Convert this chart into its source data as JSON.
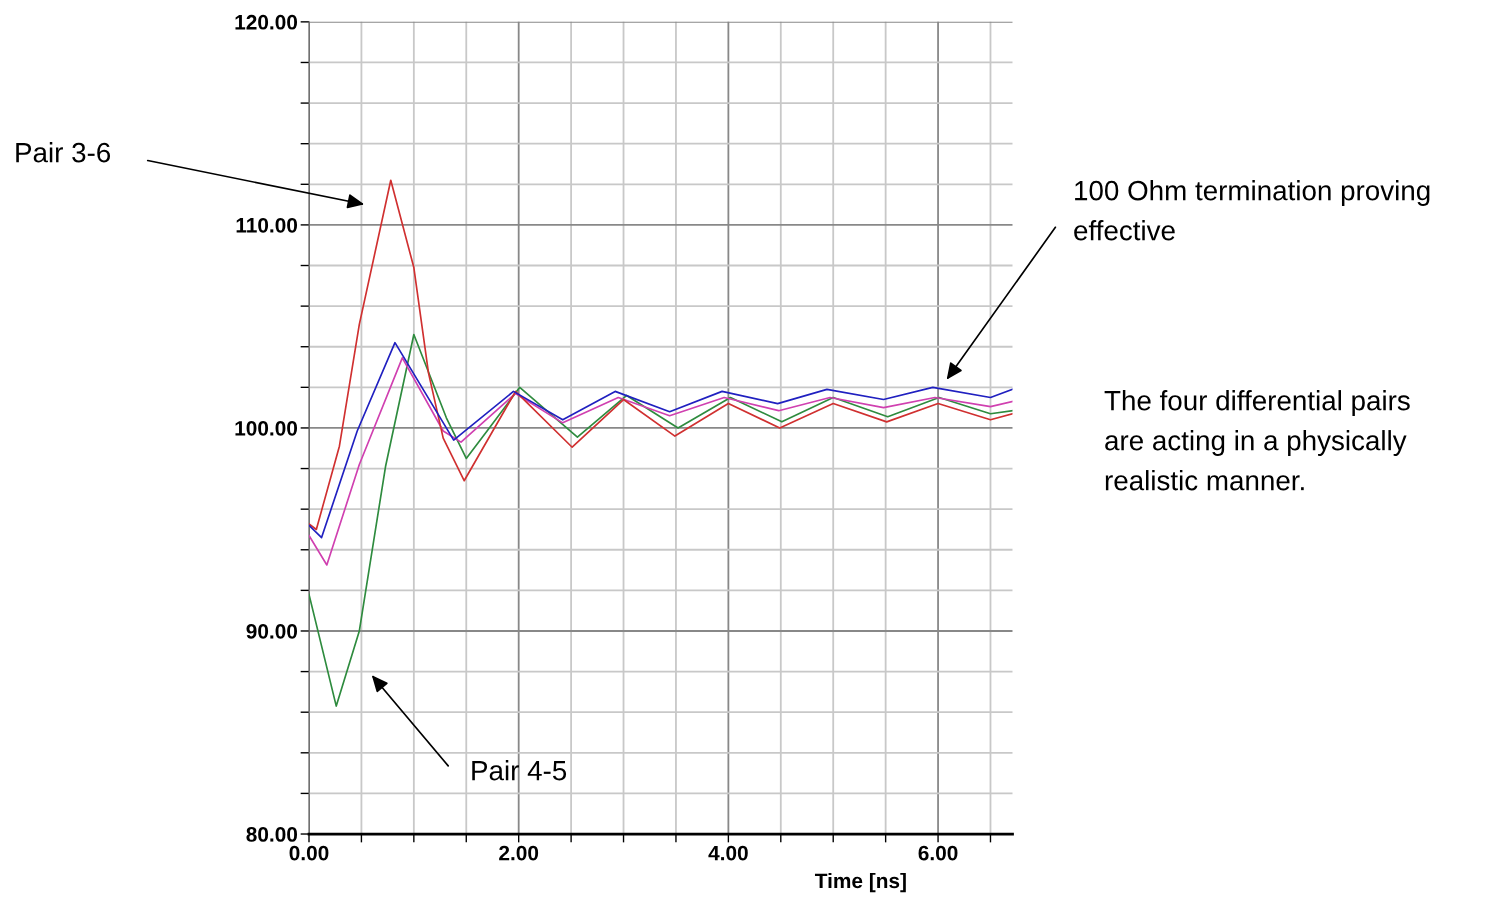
{
  "chart_data": {
    "type": "line",
    "xlabel": "Time [ns]",
    "xlim": [
      0,
      6.71
    ],
    "ylim": [
      80,
      120
    ],
    "xticks": [
      {
        "value": 0,
        "label": "0.00"
      },
      {
        "value": 0.5,
        "label": null
      },
      {
        "value": 1,
        "label": null
      },
      {
        "value": 1.5,
        "label": null
      },
      {
        "value": 2,
        "label": "2.00"
      },
      {
        "value": 2.5,
        "label": null
      },
      {
        "value": 3,
        "label": null
      },
      {
        "value": 3.5,
        "label": null
      },
      {
        "value": 4,
        "label": "4.00"
      },
      {
        "value": 4.5,
        "label": null
      },
      {
        "value": 5,
        "label": null
      },
      {
        "value": 5.5,
        "label": null
      },
      {
        "value": 6,
        "label": "6.00"
      },
      {
        "value": 6.5,
        "label": null
      }
    ],
    "yticks": [
      {
        "value": 80,
        "label": "80.00"
      },
      {
        "value": 82,
        "label": null
      },
      {
        "value": 84,
        "label": null
      },
      {
        "value": 86,
        "label": null
      },
      {
        "value": 88,
        "label": null
      },
      {
        "value": 90,
        "label": "90.00"
      },
      {
        "value": 92,
        "label": null
      },
      {
        "value": 94,
        "label": null
      },
      {
        "value": 96,
        "label": null
      },
      {
        "value": 98,
        "label": null
      },
      {
        "value": 100,
        "label": "100.00"
      },
      {
        "value": 102,
        "label": null
      },
      {
        "value": 104,
        "label": null
      },
      {
        "value": 106,
        "label": null
      },
      {
        "value": 108,
        "label": null
      },
      {
        "value": 110,
        "label": "110.00"
      },
      {
        "value": 112,
        "label": null
      },
      {
        "value": 114,
        "label": null
      },
      {
        "value": 116,
        "label": null
      },
      {
        "value": 118,
        "label": null
      },
      {
        "value": 120,
        "label": "120.00"
      }
    ],
    "grid": true,
    "marker": "none",
    "line_style": "solid",
    "legend": false,
    "series": [
      {
        "color": "#2e8b3e",
        "x": [
          0,
          0.26,
          0.48,
          0.73,
          1.0,
          1.31,
          1.5,
          1.72,
          2.01,
          2.56,
          3.03,
          3.52,
          4.02,
          4.51,
          5.0,
          5.52,
          6.01,
          6.5,
          6.71
        ],
        "values": [
          91.8,
          86.3,
          90.0,
          98.1,
          104.6,
          100.5,
          98.5,
          100.0,
          102.0,
          99.55,
          101.6,
          100.0,
          101.5,
          100.3,
          101.5,
          100.55,
          101.5,
          100.7,
          100.85
        ]
      },
      {
        "color": "#d040b0",
        "x": [
          0,
          0.17,
          0.48,
          0.89,
          1.28,
          1.45,
          1.97,
          2.42,
          2.95,
          3.44,
          3.96,
          4.48,
          4.97,
          5.48,
          5.97,
          6.5,
          6.71
        ],
        "values": [
          94.7,
          93.25,
          98.2,
          103.45,
          99.85,
          99.3,
          101.7,
          100.25,
          101.5,
          100.6,
          101.5,
          100.85,
          101.5,
          101.0,
          101.5,
          101.05,
          101.3
        ]
      },
      {
        "color": "#d03030",
        "x": [
          0,
          0.07,
          0.29,
          0.48,
          0.78,
          1.0,
          1.14,
          1.28,
          1.48,
          1.97,
          2.51,
          3.0,
          3.49,
          4.0,
          4.49,
          5.0,
          5.51,
          6.0,
          6.5,
          6.71
        ],
        "values": [
          95.27,
          95.0,
          99.1,
          105.1,
          112.2,
          107.9,
          102.7,
          99.5,
          97.4,
          101.8,
          99.05,
          101.4,
          99.6,
          101.2,
          100.0,
          101.2,
          100.3,
          101.2,
          100.4,
          100.7
        ]
      },
      {
        "color": "#2020c0",
        "x": [
          0,
          0.12,
          0.46,
          0.82,
          1.38,
          1.95,
          2.42,
          2.92,
          3.44,
          3.94,
          4.47,
          4.94,
          5.48,
          5.95,
          6.5,
          6.71
        ],
        "values": [
          95.2,
          94.6,
          99.85,
          104.2,
          99.4,
          101.8,
          100.4,
          101.8,
          100.8,
          101.8,
          101.2,
          101.9,
          101.4,
          102.0,
          101.5,
          101.9
        ]
      }
    ],
    "annotations": [
      "Pair 3-6",
      "Pair 4-5",
      "100 Ohm termination proving\neffective",
      "The four differential pairs\nare acting in a physically\nrealistic manner."
    ]
  }
}
